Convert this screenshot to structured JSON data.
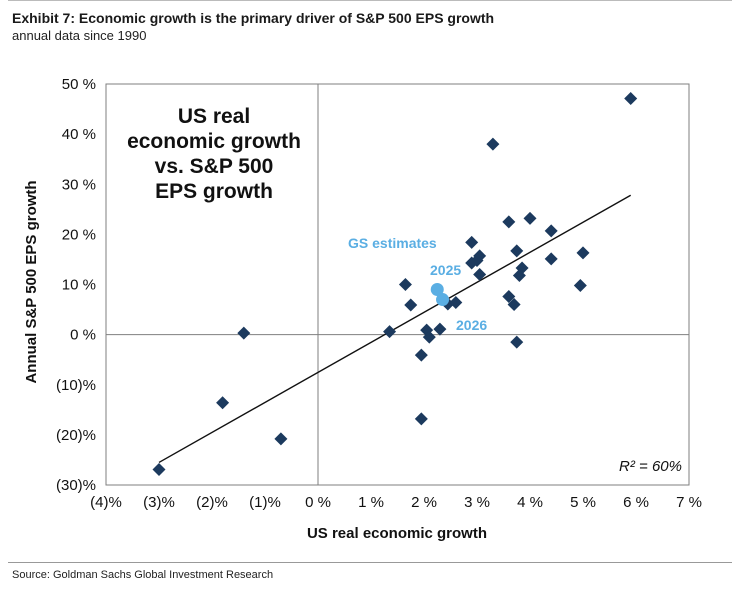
{
  "header": {
    "title": "Exhibit 7: Economic growth is the primary driver of S&P 500 EPS growth",
    "subtitle": "annual data since 1990"
  },
  "footer": {
    "source": "Source: Goldman Sachs Global Investment Research"
  },
  "colors": {
    "points": "#1c3a5e",
    "estimates": "#5aaee3",
    "frame": "#7f7f7f"
  },
  "chart_data": {
    "type": "scatter",
    "xlabel": "US real economic growth",
    "ylabel": "Annual S&P 500 EPS growth",
    "xlim": [
      -4,
      7
    ],
    "ylim": [
      -30,
      50
    ],
    "x_ticks": [
      -4,
      -3,
      -2,
      -1,
      0,
      1,
      2,
      3,
      4,
      5,
      6,
      7
    ],
    "x_tick_labels": [
      "(4)%",
      "(3)%",
      "(2)%",
      "(1)%",
      "0 %",
      "1 %",
      "2 %",
      "3 %",
      "4 %",
      "5 %",
      "6 %",
      "7 %"
    ],
    "y_ticks": [
      50,
      40,
      30,
      20,
      10,
      0,
      -10,
      -20,
      -30
    ],
    "y_tick_labels": [
      "50 %",
      "40 %",
      "30 %",
      "20 %",
      "10 %",
      "0 %",
      "(10)%",
      "(20)%",
      "(30)%"
    ],
    "inset_title": [
      "US real",
      "economic growth",
      "vs. S&P 500",
      "EPS growth"
    ],
    "annotations": {
      "estimates_label": "GS estimates",
      "label_2025": "2025",
      "label_2026": "2026",
      "r_squared": "R² = 60%"
    },
    "regression": {
      "x_start": -3.0,
      "y_start": -25.5,
      "x_end": 5.9,
      "y_end": 27.8
    },
    "series": [
      {
        "name": "Annual data since 1990",
        "marker": "diamond",
        "points": [
          {
            "x": 5.9,
            "y": 47.1
          },
          {
            "x": 3.3,
            "y": 38.0
          },
          {
            "x": 3.6,
            "y": 22.5
          },
          {
            "x": 4.0,
            "y": 23.2
          },
          {
            "x": 4.4,
            "y": 20.7
          },
          {
            "x": 2.9,
            "y": 18.4
          },
          {
            "x": 3.75,
            "y": 16.7
          },
          {
            "x": 5.0,
            "y": 16.3
          },
          {
            "x": 3.05,
            "y": 15.7
          },
          {
            "x": 3.0,
            "y": 14.8
          },
          {
            "x": 2.9,
            "y": 14.3
          },
          {
            "x": 4.4,
            "y": 15.1
          },
          {
            "x": 3.85,
            "y": 13.3
          },
          {
            "x": 3.05,
            "y": 12.0
          },
          {
            "x": 3.8,
            "y": 11.8
          },
          {
            "x": 1.65,
            "y": 10.0
          },
          {
            "x": 4.95,
            "y": 9.8
          },
          {
            "x": 3.6,
            "y": 7.6
          },
          {
            "x": 3.7,
            "y": 6.0
          },
          {
            "x": 1.75,
            "y": 5.9
          },
          {
            "x": 2.6,
            "y": 6.4
          },
          {
            "x": 2.45,
            "y": 6.1
          },
          {
            "x": 1.35,
            "y": 0.6
          },
          {
            "x": 2.05,
            "y": 0.9
          },
          {
            "x": 2.3,
            "y": 1.1
          },
          {
            "x": 2.1,
            "y": -0.5
          },
          {
            "x": 3.75,
            "y": -1.5
          },
          {
            "x": 1.95,
            "y": -4.1
          },
          {
            "x": -1.4,
            "y": 0.3
          },
          {
            "x": -1.8,
            "y": -13.6
          },
          {
            "x": -0.7,
            "y": -20.8
          },
          {
            "x": 1.95,
            "y": -16.8
          },
          {
            "x": -3.0,
            "y": -26.9
          }
        ]
      },
      {
        "name": "GS estimates",
        "marker": "circle",
        "points": [
          {
            "label": "2025",
            "x": 2.25,
            "y": 9.0
          },
          {
            "label": "2026",
            "x": 2.35,
            "y": 7.0
          }
        ]
      }
    ]
  }
}
